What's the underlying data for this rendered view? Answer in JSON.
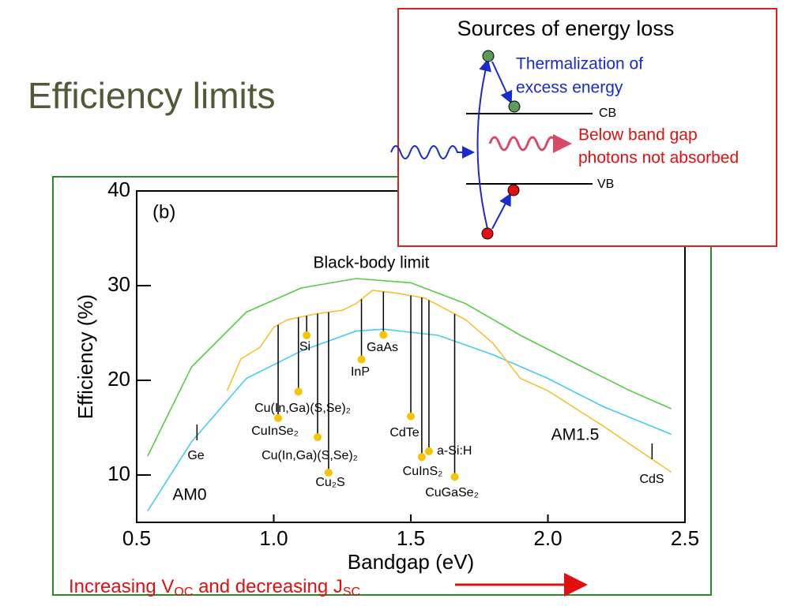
{
  "slide_title": "Efficiency limits",
  "chart_data": {
    "type": "line",
    "title": "(b)",
    "x_label": "Bandgap (eV)",
    "y_label": "Efficiency (%)",
    "xlim": [
      0.5,
      2.5
    ],
    "ylim": [
      5,
      40
    ],
    "xticks": [
      0.5,
      {
        "value": 1.0,
        "label": "1.0"
      },
      1.5,
      {
        "value": 2.0,
        "label": "2.0"
      },
      2.5
    ],
    "yticks": [
      10,
      20,
      30,
      40
    ],
    "series": [
      {
        "name": "Black-body limit",
        "color": "#55cc44",
        "x": [
          0.54,
          0.7,
          0.9,
          1.1,
          1.3,
          1.5,
          1.7,
          1.9,
          2.1,
          2.3,
          2.45
        ],
        "values": [
          12,
          21.4,
          27.2,
          29.75,
          30.75,
          30.3,
          28.1,
          24.75,
          21.8,
          18.9,
          17
        ]
      },
      {
        "name": "AM0",
        "color": "#44ccee",
        "x": [
          0.54,
          0.7,
          0.9,
          1.1,
          1.3,
          1.4,
          1.6,
          1.8,
          2.0,
          2.2,
          2.45
        ],
        "values": [
          6.2,
          13.5,
          20.2,
          23.1,
          25.2,
          25.4,
          24.75,
          22.7,
          20.2,
          17.25,
          14.3
        ]
      },
      {
        "name": "AM1.5",
        "color": "#f2c232",
        "x": [
          0.83,
          0.88,
          0.95,
          1.0,
          1.05,
          1.15,
          1.25,
          1.3,
          1.36,
          1.45,
          1.55,
          1.7,
          1.8,
          1.9,
          2.0,
          2.2,
          2.45
        ],
        "values": [
          18.9,
          22.25,
          23.5,
          25.6,
          26.4,
          27,
          27.4,
          28.1,
          29.5,
          29.2,
          28.7,
          26.4,
          23.9,
          20.2,
          18.9,
          15.2,
          10.3
        ]
      }
    ],
    "points_color": "#f5c400",
    "points": [
      {
        "label": "Ge",
        "x": 0.72,
        "y": 14.5,
        "marker": false
      },
      {
        "label": "Si",
        "x": 1.12,
        "y": 24.75
      },
      {
        "label": "InP",
        "x": 1.32,
        "y": 22.2
      },
      {
        "label": "GaAs",
        "x": 1.4,
        "y": 24.8
      },
      {
        "label": "Cu(In,Ga)(S,Se)₂",
        "x": 1.09,
        "y": 18.8
      },
      {
        "label": "CuInSe₂",
        "x": 1.016,
        "y": 16
      },
      {
        "label": "Cu(In,Ga)(S,Se)₂",
        "x": 1.16,
        "y": 14
      },
      {
        "label": "Cu₂S",
        "x": 1.2,
        "y": 10.25
      },
      {
        "label": "CdTe",
        "x": 1.5,
        "y": 16.2
      },
      {
        "label": "CuInS₂",
        "x": 1.54,
        "y": 11.9
      },
      {
        "label": "a-Si:H",
        "x": 1.566,
        "y": 12.5
      },
      {
        "label": "CuGaSe₂",
        "x": 1.66,
        "y": 9.8
      },
      {
        "label": "CdS",
        "x": 2.38,
        "y": 12.5,
        "marker": false
      }
    ]
  },
  "inset": {
    "title": "Sources of energy loss",
    "thermalization": [
      "Thermalization of",
      "excess energy"
    ],
    "cb": "CB",
    "vb": "VB",
    "below_gap": [
      "Below band gap",
      "photons not absorbed"
    ]
  },
  "footer": {
    "parts": [
      "Increasing V",
      "OC",
      " and decreasing J",
      "SC"
    ]
  }
}
